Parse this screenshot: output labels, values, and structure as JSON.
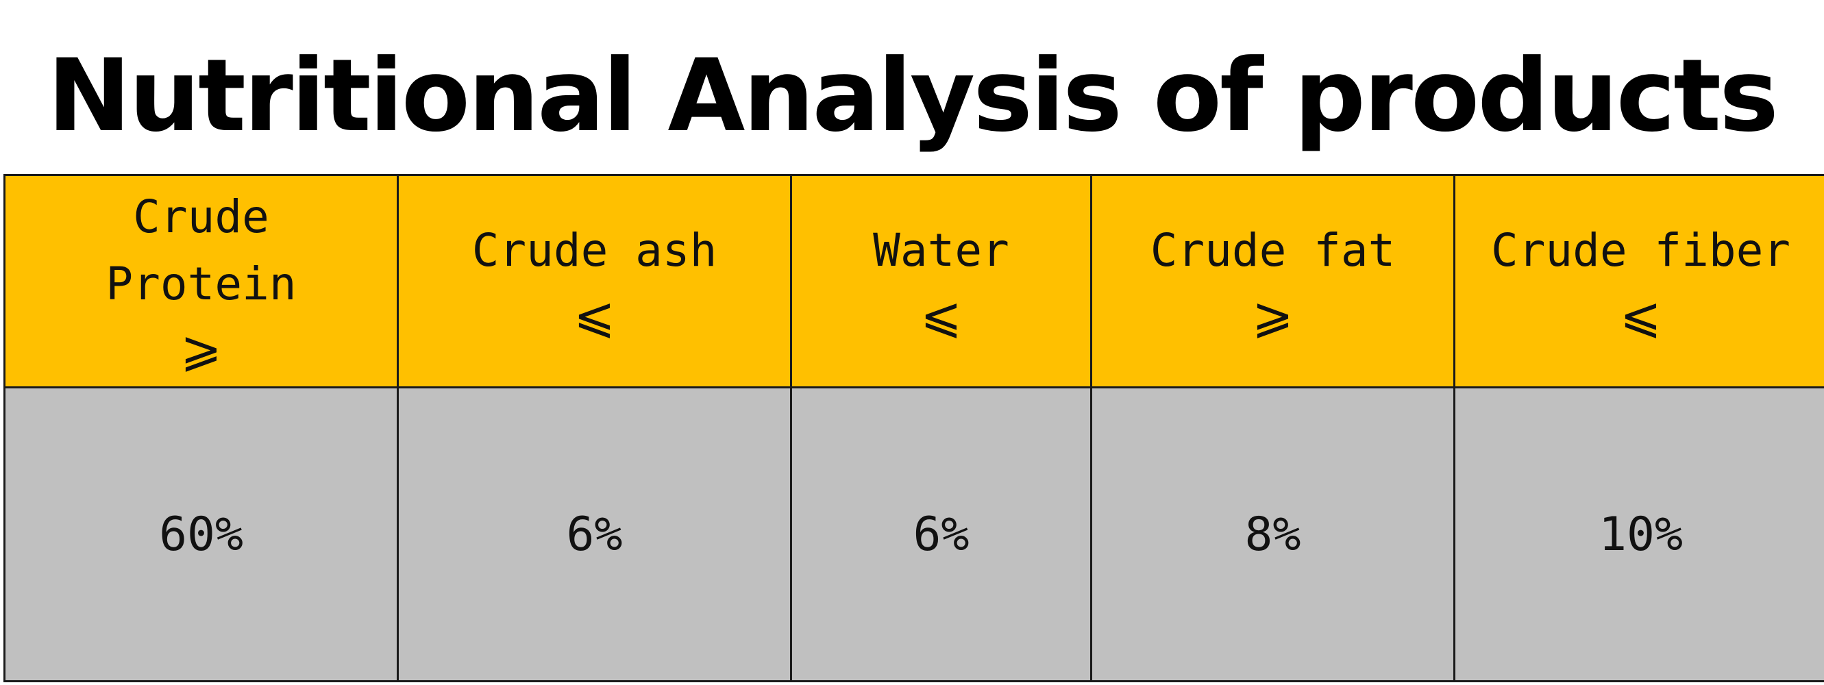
{
  "title": "Nutritional Analysis of products",
  "table": {
    "columns": [
      {
        "label": "Crude\nProtein",
        "symbol": "⩾",
        "value": "60%"
      },
      {
        "label": "Crude ash",
        "symbol": "⩽",
        "value": "6%"
      },
      {
        "label": "Water",
        "symbol": "⩽",
        "value": "6%"
      },
      {
        "label": "Crude fat",
        "symbol": "⩾",
        "value": "8%"
      },
      {
        "label": "Crude fiber",
        "symbol": "⩽",
        "value": "10%"
      }
    ]
  },
  "colors": {
    "header_background": "#ffc000",
    "value_background": "#c0c0c0",
    "border": "#1a1a1a"
  }
}
